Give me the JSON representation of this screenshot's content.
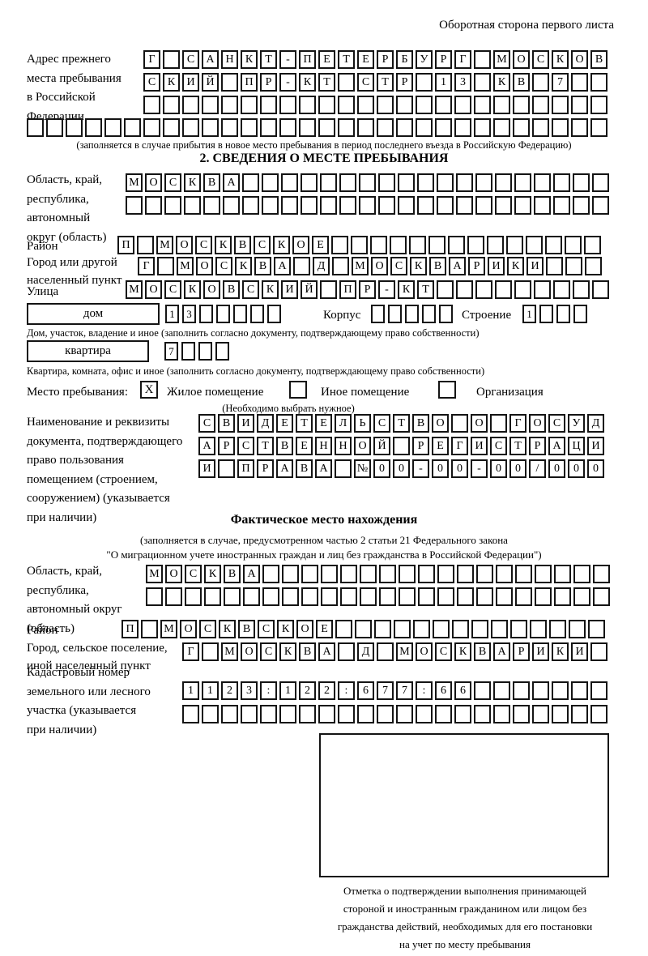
{
  "colors": {
    "ink": "#141414",
    "paper": "#ffffff"
  },
  "page": {
    "header_note": "Оборотная сторона первого листа"
  },
  "prev_address": {
    "label_lines": [
      "Адрес прежнего",
      "места пребывания",
      "в Российской",
      "Федерации"
    ],
    "row1": [
      "Г",
      "",
      "С",
      "А",
      "Н",
      "К",
      "Т",
      "-",
      "П",
      "Е",
      "Т",
      "Е",
      "Р",
      "Б",
      "У",
      "Р",
      "Г",
      "",
      "М",
      "О",
      "С",
      "К",
      "О",
      "В"
    ],
    "row2": [
      "С",
      "К",
      "И",
      "Й",
      "",
      "П",
      "Р",
      "-",
      "К",
      "Т",
      "",
      "С",
      "Т",
      "Р",
      "",
      "1",
      "3",
      "",
      "К",
      "В",
      "",
      "7",
      "",
      ""
    ],
    "row3": [
      "",
      "",
      "",
      "",
      "",
      "",
      "",
      "",
      "",
      "",
      "",
      "",
      "",
      "",
      "",
      "",
      "",
      "",
      "",
      "",
      "",
      "",
      "",
      ""
    ],
    "row4": [
      "",
      "",
      "",
      "",
      "",
      "",
      "",
      "",
      "",
      "",
      "",
      "",
      "",
      "",
      "",
      "",
      "",
      "",
      "",
      "",
      "",
      "",
      "",
      "",
      "",
      "",
      "",
      "",
      "",
      ""
    ],
    "note": "(заполняется в случае прибытия в новое место пребывания в период последнего въезда в Российскую Федерацию)"
  },
  "section2": {
    "title": "2. СВЕДЕНИЯ О МЕСТЕ ПРЕБЫВАНИЯ",
    "region_label_lines": [
      "Область, край,",
      "республика,",
      "автономный",
      "округ (область)"
    ],
    "region_row1": [
      "М",
      "О",
      "С",
      "К",
      "В",
      "А",
      "",
      "",
      "",
      "",
      "",
      "",
      "",
      "",
      "",
      "",
      "",
      "",
      "",
      "",
      "",
      "",
      "",
      "",
      ""
    ],
    "region_row2": [
      "",
      "",
      "",
      "",
      "",
      "",
      "",
      "",
      "",
      "",
      "",
      "",
      "",
      "",
      "",
      "",
      "",
      "",
      "",
      "",
      "",
      "",
      "",
      "",
      ""
    ],
    "district_label": "Район",
    "district_row": [
      "П",
      "",
      "М",
      "О",
      "С",
      "К",
      "В",
      "С",
      "К",
      "О",
      "Е",
      "",
      "",
      "",
      "",
      "",
      "",
      "",
      "",
      "",
      "",
      "",
      "",
      "",
      ""
    ],
    "city_label_lines": [
      "Город или другой",
      "населенный пункт"
    ],
    "city_row": [
      "Г",
      "",
      "М",
      "О",
      "С",
      "К",
      "В",
      "А",
      "",
      "Д",
      "",
      "М",
      "О",
      "С",
      "К",
      "В",
      "А",
      "Р",
      "И",
      "К",
      "И",
      "",
      "",
      ""
    ],
    "street_label": "Улица",
    "street_row": [
      "М",
      "О",
      "С",
      "К",
      "О",
      "В",
      "С",
      "К",
      "И",
      "Й",
      "",
      "П",
      "Р",
      "-",
      "К",
      "Т",
      "",
      "",
      "",
      "",
      "",
      "",
      "",
      "",
      ""
    ],
    "house_box_label": "дом",
    "house_cells": [
      "1",
      "3",
      "",
      "",
      "",
      "",
      ""
    ],
    "korpus_label": "Корпус",
    "korpus_cells": [
      "",
      "",
      "",
      "",
      ""
    ],
    "stroenie_label": "Строение",
    "stroenie_cells": [
      "1",
      "",
      "",
      ""
    ],
    "house_note": "Дом, участок, владение и иное (заполнить согласно документу, подтверждающему право собственности)",
    "flat_box_label": "квартира",
    "flat_cells": [
      "7",
      "",
      "",
      ""
    ],
    "flat_note": "Квартира, комната, офис и иное (заполнить согласно документу, подтверждающему право собственности)",
    "stay_label": "Место пребывания:",
    "stay_options": [
      {
        "label": "Жилое помещение",
        "mark": "X"
      },
      {
        "label": "Иное помещение",
        "mark": ""
      },
      {
        "label": "Организация",
        "mark": ""
      }
    ],
    "stay_note": "(Необходимо выбрать нужное)",
    "doc_label_lines": [
      "Наименование и реквизиты",
      "документа, подтверждающего",
      "право пользования",
      "помещением (строением,",
      "сооружением) (указывается",
      "при наличии)"
    ],
    "doc_row1": [
      "С",
      "В",
      "И",
      "Д",
      "Е",
      "Т",
      "Е",
      "Л",
      "Ь",
      "С",
      "Т",
      "В",
      "О",
      "",
      "О",
      "",
      "Г",
      "О",
      "С",
      "У",
      "Д"
    ],
    "doc_row2": [
      "А",
      "Р",
      "С",
      "Т",
      "В",
      "Е",
      "Н",
      "Н",
      "О",
      "Й",
      "",
      "Р",
      "Е",
      "Г",
      "И",
      "С",
      "Т",
      "Р",
      "А",
      "Ц",
      "И"
    ],
    "doc_row3": [
      "И",
      "",
      "П",
      "Р",
      "А",
      "В",
      "А",
      "",
      "№",
      "0",
      "0",
      "-",
      "0",
      "0",
      "-",
      "0",
      "0",
      "/",
      "0",
      "0",
      "0"
    ]
  },
  "actual_location": {
    "title": "Фактическое место нахождения",
    "note_lines": [
      "(заполняется в случае, предусмотренном частью 2 статьи 21 Федерального закона",
      "\"О миграционном учете иностранных граждан и лиц без гражданства в Российской Федерации\")"
    ],
    "region_label_lines": [
      "Область, край,",
      "республика,",
      "автономный округ",
      "(область)"
    ],
    "region_row1": [
      "М",
      "О",
      "С",
      "К",
      "В",
      "А",
      "",
      "",
      "",
      "",
      "",
      "",
      "",
      "",
      "",
      "",
      "",
      "",
      "",
      "",
      "",
      "",
      "",
      ""
    ],
    "region_row2": [
      "",
      "",
      "",
      "",
      "",
      "",
      "",
      "",
      "",
      "",
      "",
      "",
      "",
      "",
      "",
      "",
      "",
      "",
      "",
      "",
      "",
      "",
      "",
      " "
    ],
    "district_label": "Район",
    "district_row": [
      "П",
      "",
      "М",
      "О",
      "С",
      "К",
      "В",
      "С",
      "К",
      "О",
      "Е",
      "",
      "",
      "",
      "",
      "",
      "",
      "",
      "",
      "",
      "",
      "",
      "",
      "",
      ""
    ],
    "city_label_lines": [
      "Город, сельское поселение,",
      "иной населенный пункт"
    ],
    "city_row": [
      "Г",
      "",
      "М",
      "О",
      "С",
      "К",
      "В",
      "А",
      "",
      "Д",
      "",
      "М",
      "О",
      "С",
      "К",
      "В",
      "А",
      "Р",
      "И",
      "К",
      "И",
      ""
    ],
    "cadastre_label_lines": [
      "Кадастровый номер",
      "земельного или лесного",
      "участка (указывается",
      "при наличии)"
    ],
    "cadastre_row1": [
      "1",
      "1",
      "2",
      "3",
      ":",
      "1",
      "2",
      "2",
      ":",
      "6",
      "7",
      "7",
      ":",
      "6",
      "6",
      "",
      "",
      "",
      "",
      "",
      "",
      ""
    ],
    "cadastre_row2": [
      "",
      "",
      "",
      "",
      "",
      "",
      "",
      "",
      "",
      "",
      "",
      "",
      "",
      "",
      "",
      "",
      "",
      "",
      "",
      "",
      "",
      ""
    ],
    "mark_note_lines": [
      "Отметка о подтверждении выполнения принимающей",
      "стороной и иностранным гражданином или лицом без",
      "гражданства действий, необходимых для его постановки",
      "на учет по месту пребывания"
    ]
  }
}
